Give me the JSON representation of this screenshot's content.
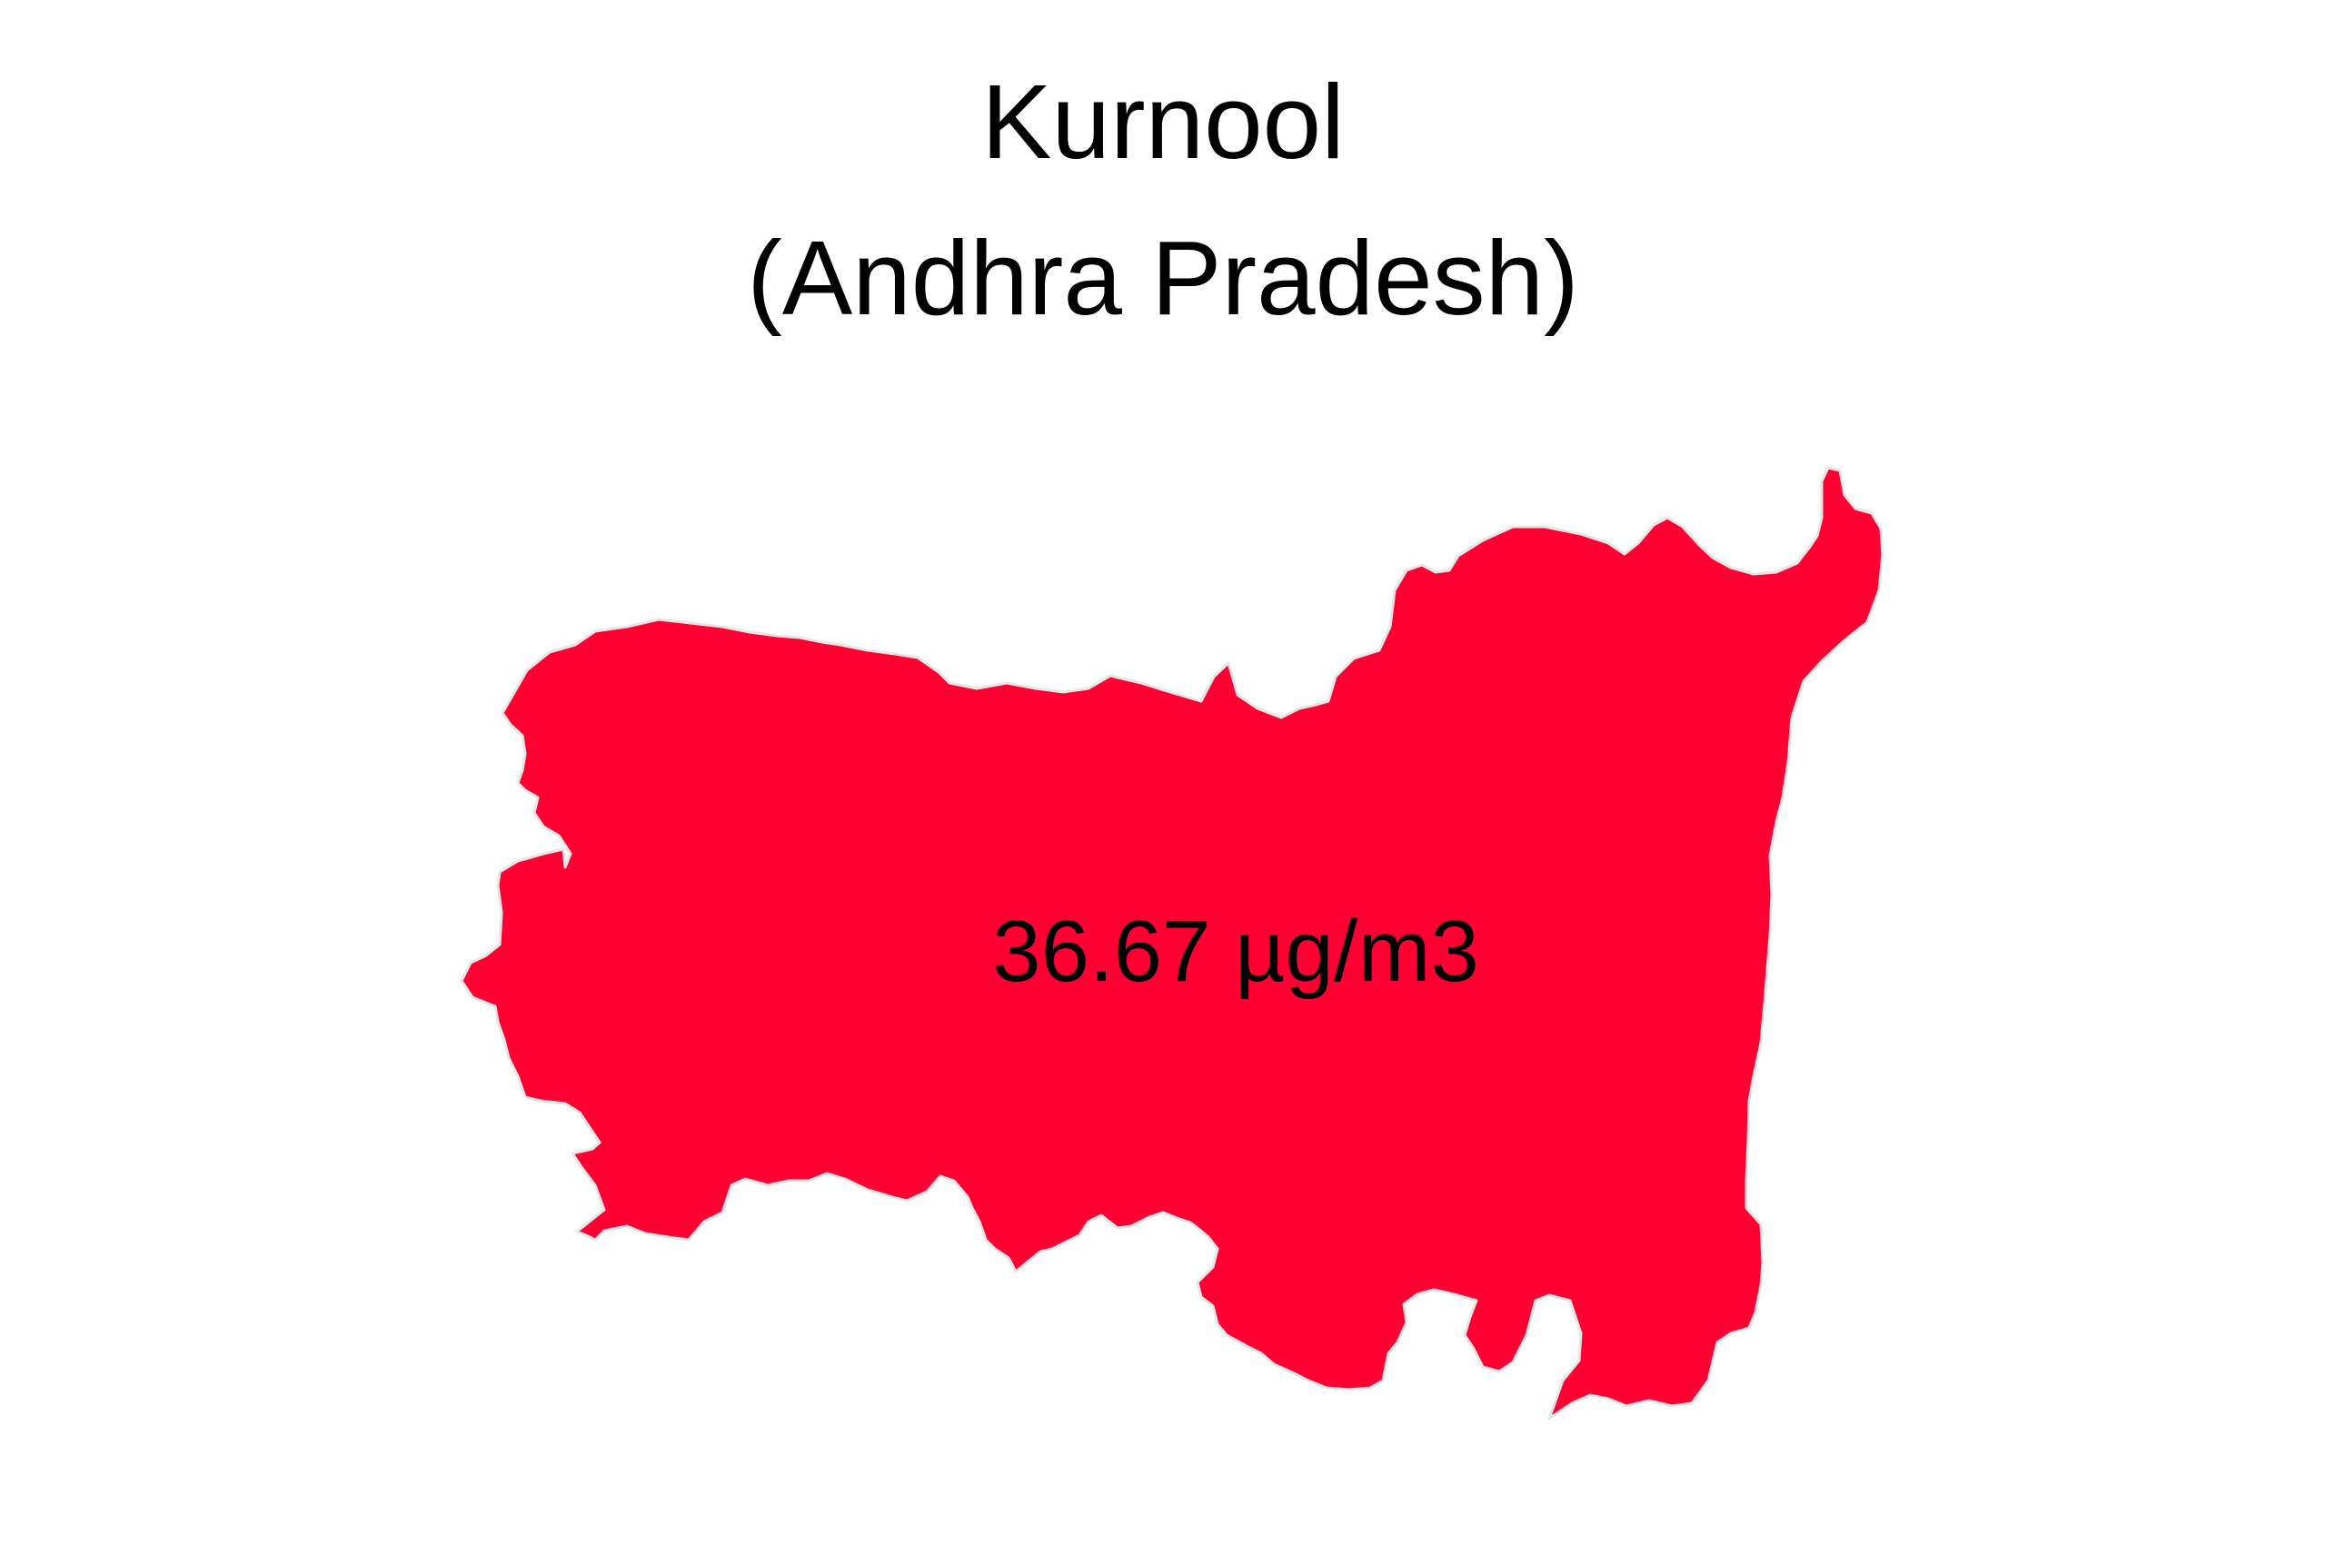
{
  "map": {
    "title": "Kurnool",
    "subtitle": "(Andhra Pradesh)",
    "region": {
      "name": "Kurnool",
      "value_label": "36.67 µg/m3",
      "fill_color": "#FF0033",
      "outline_color": "#E6E6E6"
    }
  }
}
